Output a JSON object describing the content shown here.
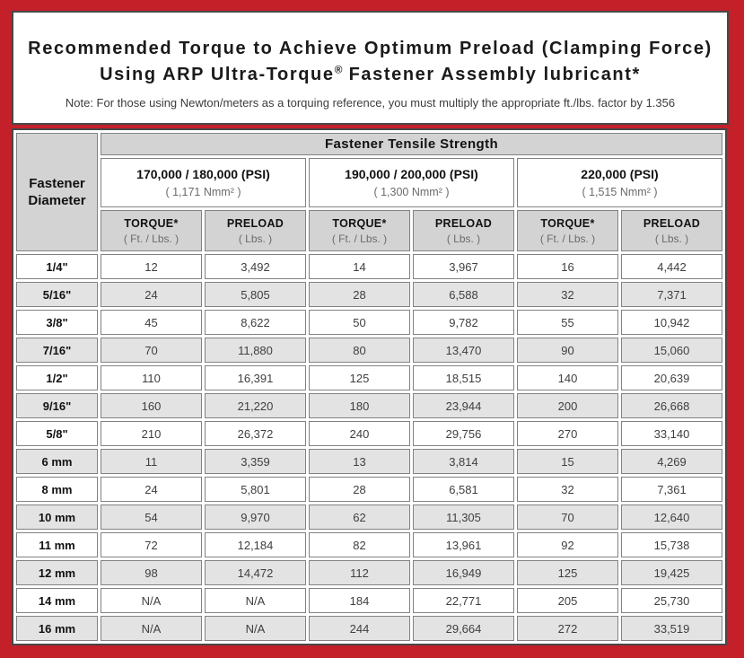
{
  "frame": {
    "border_color": "#c32029"
  },
  "title": {
    "line1": "Recommended Torque to Achieve Optimum Preload (Clamping Force)",
    "line2_prefix": "Using ARP Ultra-Torque",
    "line2_reg": "®",
    "line2_suffix": " Fastener Assembly lubricant*",
    "note": "Note: For those using Newton/meters as a torquing reference, you must multiply the appropriate ft./lbs. factor by 1.356"
  },
  "table": {
    "corner_header": "Fastener Diameter",
    "tensile_header": "Fastener Tensile Strength",
    "groups": [
      {
        "psi": "170,000 / 180,000 (PSI)",
        "nmm": "( 1,171 Nmm² )"
      },
      {
        "psi": "190,000 / 200,000 (PSI)",
        "nmm": "( 1,300 Nmm² )"
      },
      {
        "psi": "220,000 (PSI)",
        "nmm": "( 1,515 Nmm² )"
      }
    ],
    "col_headers": [
      {
        "label": "TORQUE*",
        "sub": "( Ft. / Lbs. )"
      },
      {
        "label": "PRELOAD",
        "sub": "( Lbs. )"
      },
      {
        "label": "TORQUE*",
        "sub": "( Ft. / Lbs. )"
      },
      {
        "label": "PRELOAD",
        "sub": "( Lbs. )"
      },
      {
        "label": "TORQUE*",
        "sub": "( Ft. / Lbs. )"
      },
      {
        "label": "PRELOAD",
        "sub": "( Lbs. )"
      }
    ],
    "rows": [
      {
        "dia": "1/4\"",
        "values": [
          "12",
          "3,492",
          "14",
          "3,967",
          "16",
          "4,442"
        ]
      },
      {
        "dia": "5/16\"",
        "values": [
          "24",
          "5,805",
          "28",
          "6,588",
          "32",
          "7,371"
        ]
      },
      {
        "dia": "3/8\"",
        "values": [
          "45",
          "8,622",
          "50",
          "9,782",
          "55",
          "10,942"
        ]
      },
      {
        "dia": "7/16\"",
        "values": [
          "70",
          "11,880",
          "80",
          "13,470",
          "90",
          "15,060"
        ]
      },
      {
        "dia": "1/2\"",
        "values": [
          "110",
          "16,391",
          "125",
          "18,515",
          "140",
          "20,639"
        ]
      },
      {
        "dia": "9/16\"",
        "values": [
          "160",
          "21,220",
          "180",
          "23,944",
          "200",
          "26,668"
        ]
      },
      {
        "dia": "5/8\"",
        "values": [
          "210",
          "26,372",
          "240",
          "29,756",
          "270",
          "33,140"
        ]
      },
      {
        "dia": "6 mm",
        "values": [
          "11",
          "3,359",
          "13",
          "3,814",
          "15",
          "4,269"
        ]
      },
      {
        "dia": "8 mm",
        "values": [
          "24",
          "5,801",
          "28",
          "6,581",
          "32",
          "7,361"
        ]
      },
      {
        "dia": "10 mm",
        "values": [
          "54",
          "9,970",
          "62",
          "11,305",
          "70",
          "12,640"
        ]
      },
      {
        "dia": "11 mm",
        "values": [
          "72",
          "12,184",
          "82",
          "13,961",
          "92",
          "15,738"
        ]
      },
      {
        "dia": "12 mm",
        "values": [
          "98",
          "14,472",
          "112",
          "16,949",
          "125",
          "19,425"
        ]
      },
      {
        "dia": "14 mm",
        "values": [
          "N/A",
          "N/A",
          "184",
          "22,771",
          "205",
          "25,730"
        ]
      },
      {
        "dia": "16 mm",
        "values": [
          "N/A",
          "N/A",
          "244",
          "29,664",
          "272",
          "33,519"
        ]
      }
    ]
  }
}
